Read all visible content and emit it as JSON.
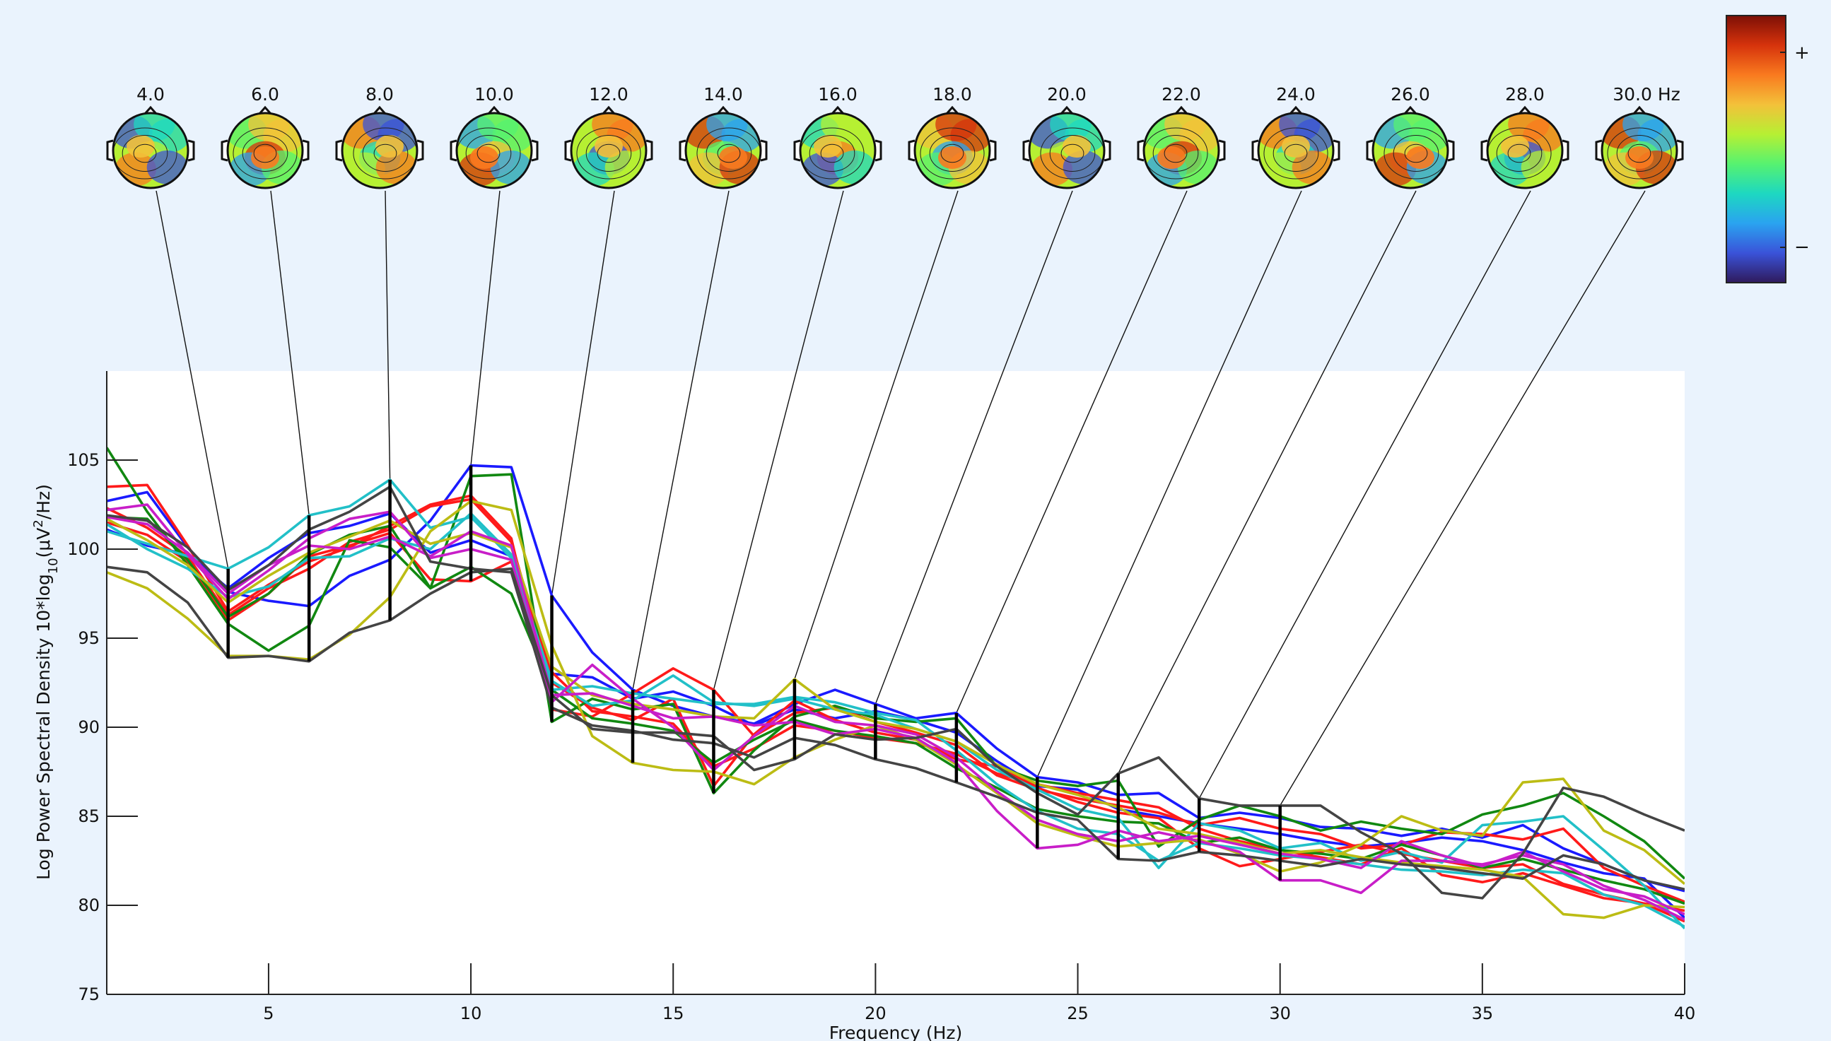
{
  "chart_data": {
    "type": "line",
    "title": "",
    "xlabel": "Frequency (Hz)",
    "ylabel_main": "Log Power Spectral Density 10*log",
    "ylabel_sub": "10",
    "ylabel_tail": "(μV",
    "ylabel_sup": "2",
    "ylabel_end": "/Hz)",
    "xlim": [
      1,
      40
    ],
    "ylim": [
      75,
      110
    ],
    "xticks": [
      "5",
      "10",
      "15",
      "20",
      "25",
      "30",
      "35",
      "40"
    ],
    "xtick_values": [
      5,
      10,
      15,
      20,
      25,
      30,
      35,
      40
    ],
    "yticks": [
      "75",
      "80",
      "85",
      "90",
      "95",
      "100",
      "105"
    ],
    "ytick_values": [
      75,
      80,
      85,
      90,
      95,
      100,
      105
    ],
    "grid": false,
    "x": [
      1,
      2,
      3,
      4,
      5,
      6,
      7,
      8,
      9,
      10,
      11,
      12,
      13,
      14,
      15,
      16,
      17,
      18,
      19,
      20,
      21,
      22,
      23,
      24,
      25,
      26,
      27,
      28,
      29,
      30,
      31,
      32,
      33,
      34,
      35,
      36,
      37,
      38,
      39,
      40
    ],
    "series": [
      {
        "color": "#1a1aff",
        "values": [
          102.7,
          103.2,
          100.1,
          97.6,
          97.1,
          96.8,
          98.5,
          99.4,
          101.6,
          104.7,
          104.6,
          97.4,
          94.2,
          92.1,
          91.2,
          90.6,
          90.2,
          91.3,
          92.1,
          91.3,
          90.5,
          90.8,
          88.8,
          87.2,
          86.9,
          86.2,
          86.3,
          84.9,
          85.2,
          84.9,
          84.4,
          84.3,
          83.9,
          84.3,
          83.8,
          84.5,
          83.2,
          82.3,
          81.4,
          80.8
        ]
      },
      {
        "color": "#1a1aff",
        "values": [
          101.1,
          100.2,
          99.7,
          97.8,
          99.5,
          100.9,
          101.3,
          102.0,
          99.8,
          100.5,
          99.6,
          93.0,
          92.8,
          91.6,
          92.0,
          91.2,
          90.1,
          91.0,
          90.5,
          90.9,
          90.4,
          89.7,
          88.1,
          86.7,
          86.5,
          85.4,
          85.0,
          84.6,
          84.3,
          84.0,
          83.6,
          83.3,
          83.5,
          83.8,
          83.6,
          83.1,
          82.4,
          81.8,
          81.5,
          79.3
        ]
      },
      {
        "color": "#ff1a1a",
        "values": [
          103.5,
          103.6,
          100.2,
          96.5,
          98.0,
          99.3,
          100.1,
          101.3,
          102.5,
          103.0,
          100.6,
          91.0,
          90.6,
          91.9,
          93.3,
          92.1,
          89.5,
          90.8,
          91.1,
          90.3,
          89.7,
          89.0,
          87.3,
          86.5,
          86.0,
          85.6,
          85.2,
          84.5,
          84.9,
          84.3,
          84.0,
          83.2,
          83.4,
          84.1,
          84.0,
          83.7,
          84.3,
          82.1,
          81.1,
          80.2
        ]
      },
      {
        "color": "#ff1a1a",
        "values": [
          102.3,
          101.2,
          99.6,
          96.3,
          97.8,
          98.9,
          100.4,
          101.1,
          102.4,
          102.8,
          100.4,
          92.5,
          91.1,
          90.4,
          91.6,
          86.7,
          89.6,
          91.5,
          90.4,
          89.7,
          89.3,
          88.2,
          87.8,
          86.6,
          85.8,
          85.2,
          84.9,
          83.2,
          82.2,
          82.6,
          83.0,
          83.4,
          82.9,
          82.5,
          82.1,
          82.3,
          81.2,
          80.6,
          80.1,
          79.1
        ]
      },
      {
        "color": "#ff1a1a",
        "values": [
          101.5,
          100.8,
          99.3,
          96.0,
          97.5,
          99.6,
          100.2,
          100.9,
          98.3,
          98.2,
          99.3,
          93.1,
          90.9,
          90.6,
          90.2,
          87.8,
          88.8,
          90.1,
          89.8,
          89.4,
          89.1,
          88.5,
          87.4,
          86.8,
          86.3,
          85.9,
          85.5,
          84.3,
          83.6,
          83.1,
          82.7,
          82.3,
          83.2,
          81.7,
          81.3,
          81.8,
          81.1,
          80.4,
          80.1,
          79.7
        ]
      },
      {
        "color": "#118811",
        "values": [
          105.7,
          102.1,
          99.1,
          95.8,
          94.3,
          95.7,
          100.5,
          100.1,
          97.8,
          104.1,
          104.2,
          90.3,
          91.6,
          91.0,
          91.3,
          86.3,
          88.7,
          90.6,
          91.2,
          90.5,
          90.3,
          90.5,
          87.8,
          87.0,
          86.7,
          87.0,
          83.3,
          84.8,
          85.6,
          85.0,
          84.2,
          84.7,
          84.3,
          84.0,
          85.1,
          85.6,
          86.3,
          85.0,
          83.6,
          81.5
        ]
      },
      {
        "color": "#118811",
        "values": [
          101.8,
          101.7,
          99.4,
          96.2,
          97.5,
          99.7,
          100.8,
          101.3,
          97.8,
          99.0,
          97.5,
          92.1,
          90.5,
          90.2,
          89.8,
          88.0,
          89.3,
          90.4,
          89.8,
          89.5,
          89.1,
          87.7,
          86.6,
          85.4,
          85.0,
          84.7,
          84.6,
          83.5,
          83.8,
          83.1,
          82.9,
          82.6,
          83.4,
          82.8,
          82.1,
          82.6,
          82.0,
          81.4,
          80.9,
          80.1
        ]
      },
      {
        "color": "#22c0c8",
        "values": [
          101.0,
          100.3,
          99.6,
          98.9,
          100.1,
          101.9,
          102.4,
          103.9,
          101.2,
          101.8,
          99.5,
          92.6,
          91.2,
          91.5,
          92.9,
          91.4,
          91.2,
          91.6,
          91.0,
          90.7,
          89.9,
          89.2,
          87.6,
          86.5,
          85.4,
          84.9,
          82.1,
          84.6,
          84.2,
          83.2,
          83.5,
          82.5,
          83.0,
          82.4,
          84.5,
          84.7,
          85.0,
          83.1,
          81.1,
          78.7
        ]
      },
      {
        "color": "#22c0c8",
        "values": [
          101.4,
          100.0,
          98.9,
          97.3,
          97.9,
          99.5,
          99.6,
          100.6,
          100.0,
          102.0,
          99.7,
          92.1,
          92.3,
          91.9,
          91.6,
          91.3,
          91.3,
          91.7,
          91.4,
          90.8,
          90.4,
          88.7,
          86.8,
          85.3,
          84.3,
          84.0,
          82.5,
          83.5,
          83.2,
          82.8,
          82.6,
          82.3,
          82.0,
          81.9,
          81.7,
          82.0,
          81.8,
          80.6,
          80.0,
          78.8
        ]
      },
      {
        "color": "#bcbc14",
        "values": [
          98.7,
          97.8,
          96.1,
          94.0,
          94.0,
          93.8,
          95.2,
          97.3,
          101.0,
          102.7,
          102.2,
          94.6,
          89.5,
          88.0,
          87.6,
          87.5,
          86.8,
          88.3,
          89.3,
          90.1,
          89.3,
          87.9,
          86.3,
          84.6,
          83.9,
          83.3,
          83.5,
          83.7,
          82.9,
          81.9,
          82.4,
          83.4,
          85.0,
          84.2,
          83.9,
          86.9,
          87.1,
          84.2,
          83.1,
          81.2
        ]
      },
      {
        "color": "#bcbc14",
        "values": [
          101.7,
          100.5,
          99.1,
          97.0,
          98.5,
          99.8,
          100.7,
          101.6,
          100.3,
          100.9,
          100.1,
          93.4,
          91.8,
          91.3,
          91.0,
          90.6,
          90.5,
          92.7,
          91.0,
          90.3,
          89.9,
          89.2,
          87.9,
          86.8,
          86.2,
          85.5,
          84.3,
          84.0,
          83.5,
          82.9,
          83.1,
          82.7,
          82.4,
          82.2,
          82.0,
          81.6,
          79.5,
          79.3,
          80.0,
          79.9
        ]
      },
      {
        "color": "#c81ec8",
        "values": [
          102.2,
          102.5,
          99.7,
          97.2,
          98.8,
          100.6,
          101.7,
          102.1,
          99.5,
          100.0,
          99.4,
          91.4,
          93.5,
          91.6,
          90.0,
          87.6,
          89.5,
          91.2,
          90.3,
          90.1,
          89.6,
          88.3,
          86.4,
          84.8,
          84.0,
          83.6,
          84.1,
          83.6,
          83.0,
          81.4,
          81.4,
          80.7,
          82.5,
          82.5,
          82.3,
          82.8,
          82.3,
          81.1,
          80.3,
          79.2
        ]
      },
      {
        "color": "#c81ec8",
        "values": [
          101.8,
          101.4,
          99.8,
          97.5,
          99.1,
          100.2,
          100.0,
          100.7,
          99.6,
          101.0,
          100.2,
          91.8,
          91.9,
          91.2,
          90.5,
          90.6,
          90.1,
          90.3,
          89.6,
          89.9,
          89.4,
          88.0,
          85.3,
          83.2,
          83.4,
          84.2,
          83.6,
          83.9,
          83.4,
          82.9,
          82.6,
          82.1,
          83.6,
          82.8,
          82.2,
          83.0,
          81.9,
          80.9,
          80.5,
          79.5
        ]
      },
      {
        "color": "#444444",
        "values": [
          99.0,
          98.7,
          97.0,
          93.9,
          94.0,
          93.7,
          95.3,
          96.0,
          97.5,
          98.7,
          98.9,
          91.8,
          89.9,
          89.7,
          89.7,
          89.5,
          87.6,
          88.2,
          89.6,
          89.3,
          89.4,
          89.9,
          87.8,
          86.3,
          85.1,
          87.4,
          88.3,
          86.0,
          85.6,
          85.6,
          85.6,
          84.1,
          82.9,
          80.7,
          80.4,
          82.9,
          86.6,
          86.1,
          85.1,
          84.2
        ]
      },
      {
        "color": "#444444",
        "values": [
          101.9,
          101.6,
          100.1,
          97.7,
          99.1,
          101.1,
          102.1,
          103.5,
          99.3,
          98.9,
          98.7,
          91.1,
          90.1,
          89.8,
          89.3,
          89.1,
          88.3,
          89.4,
          89.0,
          88.2,
          87.7,
          86.9,
          86.1,
          85.2,
          84.8,
          82.6,
          82.5,
          83.0,
          82.8,
          82.5,
          82.2,
          82.6,
          82.3,
          82.1,
          81.8,
          81.5,
          82.8,
          82.3,
          81.4,
          80.9
        ]
      }
    ],
    "markers": [
      {
        "freq": 4.0,
        "label": "4.0"
      },
      {
        "freq": 6.0,
        "label": "6.0"
      },
      {
        "freq": 8.0,
        "label": "8.0"
      },
      {
        "freq": 10.0,
        "label": "10.0"
      },
      {
        "freq": 12.0,
        "label": "12.0"
      },
      {
        "freq": 14.0,
        "label": "14.0"
      },
      {
        "freq": 16.0,
        "label": "16.0"
      },
      {
        "freq": 18.0,
        "label": "18.0"
      },
      {
        "freq": 20.0,
        "label": "20.0"
      },
      {
        "freq": 22.0,
        "label": "22.0"
      },
      {
        "freq": 24.0,
        "label": "24.0"
      },
      {
        "freq": 26.0,
        "label": "26.0"
      },
      {
        "freq": 28.0,
        "label": "28.0"
      },
      {
        "freq": 30.0,
        "label": "30.0 Hz"
      }
    ],
    "colorbar": {
      "plus_label": "+",
      "minus_label": "−",
      "colors": [
        "#2f1a5c",
        "#3a53d9",
        "#2aa3f0",
        "#1dd8c1",
        "#56f270",
        "#b6f033",
        "#f3c13a",
        "#f97a1f",
        "#d6330c",
        "#7d0f06"
      ]
    }
  }
}
